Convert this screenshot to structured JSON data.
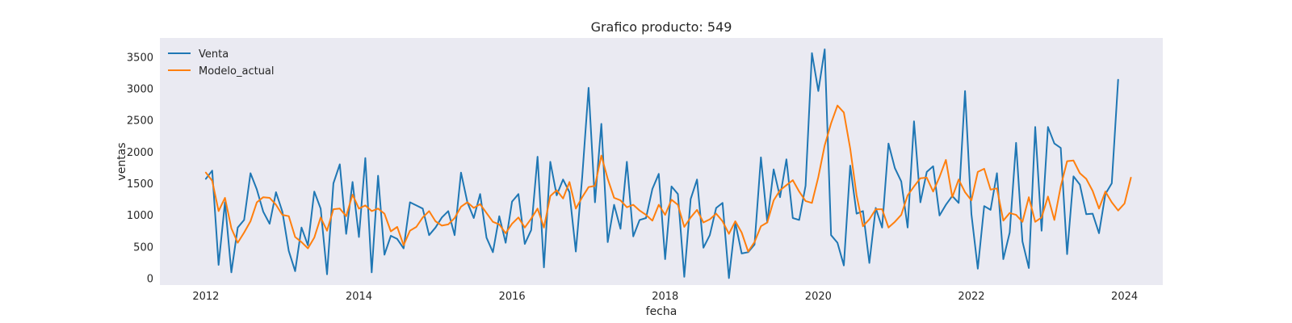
{
  "chart_data": {
    "type": "line",
    "title": "Grafico producto: 549",
    "xlabel": "fecha",
    "ylabel": "ventas",
    "x_start": "2012-01",
    "x_frequency": "monthly",
    "xlim": [
      2011.4,
      2024.5
    ],
    "ylim": [
      -110,
      3800
    ],
    "xticks": [
      2012,
      2014,
      2016,
      2018,
      2020,
      2022,
      2024
    ],
    "yticks": [
      0,
      500,
      1000,
      1500,
      2000,
      2500,
      3000,
      3500
    ],
    "grid": false,
    "legend": "top-left",
    "series": [
      {
        "name": "Venta",
        "color": "#1f77b4",
        "values": [
          1570,
          1700,
          210,
          1200,
          90,
          800,
          920,
          1660,
          1400,
          1050,
          860,
          1360,
          1050,
          430,
          110,
          800,
          520,
          1370,
          1100,
          60,
          1500,
          1800,
          700,
          1520,
          650,
          1900,
          90,
          1620,
          370,
          670,
          620,
          470,
          1200,
          1150,
          1100,
          680,
          800,
          960,
          1060,
          680,
          1670,
          1200,
          950,
          1330,
          640,
          410,
          980,
          560,
          1210,
          1330,
          540,
          760,
          1920,
          170,
          1840,
          1310,
          1560,
          1360,
          420,
          1600,
          3010,
          1200,
          2440,
          570,
          1160,
          780,
          1840,
          660,
          920,
          950,
          1410,
          1650,
          300,
          1450,
          1330,
          20,
          1250,
          1560,
          480,
          680,
          1110,
          1190,
          0,
          880,
          390,
          410,
          530,
          1910,
          880,
          1720,
          1280,
          1880,
          950,
          920,
          1460,
          3560,
          2960,
          3620,
          680,
          560,
          200,
          1780,
          1020,
          1060,
          240,
          1110,
          800,
          2130,
          1740,
          1530,
          800,
          2480,
          1200,
          1680,
          1770,
          990,
          1160,
          1300,
          1190,
          2960,
          1010,
          150,
          1140,
          1080,
          1660,
          300,
          720,
          2140,
          580,
          160,
          2390,
          750,
          2390,
          2130,
          2060,
          380,
          1610,
          1480,
          1010,
          1020,
          710,
          1330,
          1500,
          3140
        ]
      },
      {
        "name": "Modelo_actual",
        "color": "#ff7f0e",
        "values": [
          1670,
          1540,
          1060,
          1270,
          790,
          560,
          720,
          900,
          1200,
          1280,
          1270,
          1160,
          1000,
          980,
          650,
          570,
          470,
          640,
          960,
          750,
          1090,
          1100,
          980,
          1320,
          1100,
          1150,
          1060,
          1100,
          1020,
          740,
          810,
          520,
          750,
          810,
          960,
          1060,
          900,
          830,
          850,
          950,
          1130,
          1200,
          1110,
          1170,
          1030,
          890,
          850,
          710,
          860,
          960,
          800,
          940,
          1100,
          800,
          1300,
          1390,
          1260,
          1520,
          1100,
          1280,
          1440,
          1460,
          1940,
          1570,
          1270,
          1230,
          1120,
          1160,
          1070,
          1000,
          910,
          1160,
          1000,
          1240,
          1160,
          810,
          960,
          1080,
          880,
          930,
          1020,
          900,
          700,
          900,
          720,
          420,
          570,
          820,
          880,
          1230,
          1390,
          1470,
          1550,
          1370,
          1220,
          1190,
          1600,
          2100,
          2450,
          2730,
          2620,
          2050,
          1310,
          820,
          930,
          1090,
          1090,
          800,
          890,
          1000,
          1310,
          1450,
          1580,
          1590,
          1370,
          1600,
          1870,
          1280,
          1560,
          1360,
          1230,
          1680,
          1730,
          1400,
          1420,
          910,
          1030,
          1000,
          890,
          1280,
          890,
          960,
          1290,
          920,
          1450,
          1850,
          1860,
          1660,
          1570,
          1380,
          1100,
          1370,
          1200,
          1070,
          1180,
          1590
        ]
      }
    ]
  }
}
